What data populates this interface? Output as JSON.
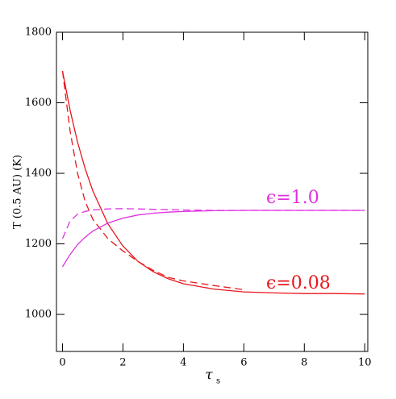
{
  "chart_data": {
    "type": "line",
    "ylabel": "T (0.5 AU)  (K)",
    "xlabel": {
      "symbol": "τ",
      "subscript": "s"
    },
    "x": [
      0,
      0.25,
      0.5,
      0.75,
      1,
      1.5,
      2,
      2.5,
      3,
      3.5,
      4,
      5,
      6,
      7,
      8,
      9,
      10
    ],
    "series": [
      {
        "color": "#e8161b",
        "dashed": false,
        "values": [
          1690,
          1579,
          1488,
          1413,
          1351,
          1257,
          1194,
          1150,
          1121,
          1101,
          1087,
          1072,
          1064,
          1061,
          1059,
          1059,
          1058
        ]
      },
      {
        "color": "#e8161b",
        "dashed": true,
        "values": [
          1690,
          1520,
          1400,
          1320,
          1270,
          1215,
          1180,
          1150,
          1125,
          1105,
          1095,
          1082,
          1070,
          null,
          null,
          null,
          null
        ]
      },
      {
        "color": "#e030e0",
        "dashed": false,
        "values": [
          1135,
          1170,
          1198,
          1219,
          1236,
          1259,
          1273,
          1282,
          1287,
          1290,
          1292,
          1294,
          1295,
          1295,
          1295,
          1295,
          1295
        ]
      },
      {
        "color": "#e030e0",
        "dashed": true,
        "values": [
          1215,
          1265,
          1284,
          1292,
          1296,
          1299,
          1300,
          1299,
          1298,
          1297,
          1296,
          1295,
          1295,
          1295,
          1295,
          1295,
          1295
        ]
      }
    ],
    "annotations": [
      {
        "text": "ϵ=1.0",
        "color": "#e030e0"
      },
      {
        "text": "ϵ=0.08",
        "color": "#e8161b"
      }
    ],
    "xlim": [
      -0.2,
      10.1
    ],
    "ylim": [
      895,
      1800
    ],
    "xticks": [
      0,
      2,
      4,
      6,
      8,
      10
    ],
    "yticks": [
      1000,
      1200,
      1400,
      1600,
      1800
    ]
  }
}
